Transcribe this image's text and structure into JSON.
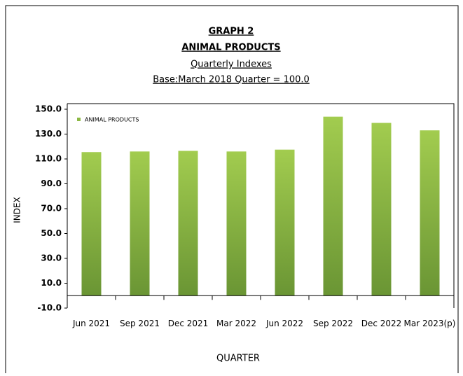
{
  "chart_data": {
    "type": "bar",
    "title": "GRAPH 2",
    "subtitle": "ANIMAL PRODUCTS",
    "subtitle2": "Quarterly Indexes",
    "subtitle3": "Base:March 2018 Quarter = 100.0",
    "x_label": "QUARTER",
    "y_label": "INDEX",
    "categories": [
      "Jun 2021",
      "Sep 2021",
      "Dec 2021",
      "Mar 2022",
      "Jun 2022",
      "Sep 2022",
      "Dec 2022",
      "Mar 2023(p)"
    ],
    "series": [
      {
        "name": "ANIMAL PRODUCTS",
        "color": "#8cb843",
        "values": [
          115.5,
          116,
          116.5,
          116,
          117.5,
          144,
          139,
          133
        ]
      }
    ],
    "ylim": [
      -10,
      150
    ],
    "yticks": [
      {
        "value": -10,
        "label": "-10.0"
      },
      {
        "value": 10,
        "label": "10.0"
      },
      {
        "value": 30,
        "label": "30.0"
      },
      {
        "value": 50,
        "label": "50.0"
      },
      {
        "value": 70,
        "label": "70.0"
      },
      {
        "value": 90,
        "label": "90.0"
      },
      {
        "value": 110,
        "label": "110.0"
      },
      {
        "value": 130,
        "label": "130.0"
      },
      {
        "value": 150,
        "label": "150.0"
      }
    ],
    "legend": "upper left",
    "grid": false
  }
}
